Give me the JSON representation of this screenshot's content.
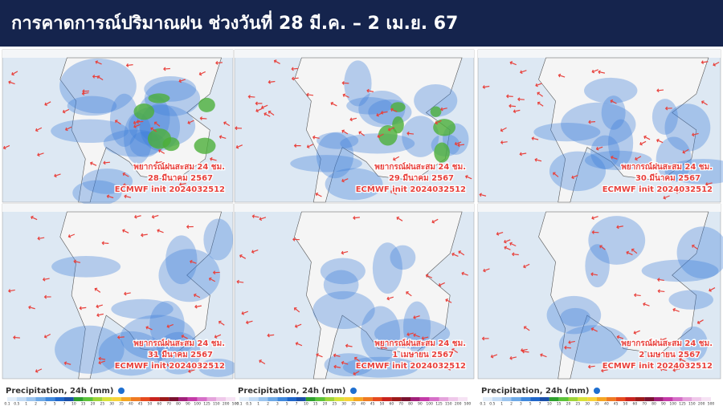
{
  "header": {
    "title": "การคาดการณ์ปริมาณฝน ช่วงวันที่ 28 มี.ค. – 2 เม.ย. 67"
  },
  "panels": [
    {
      "label": "พยากรณ์ฝนสะสม 24 ชม.",
      "date": "28 มีนาคม 2567",
      "model": "ECMWF init 2024032512"
    },
    {
      "label": "พยากรณ์ฝนสะสม 24 ชม.",
      "date": "29 มีนาคม 2567",
      "model": "ECMWF init 2024032512"
    },
    {
      "label": "พยากรณ์ฝนสะสม 24 ชม.",
      "date": "30 มีนาคม 2567",
      "model": "ECMWF init 2024032512"
    },
    {
      "label": "พยากรณ์ฝนสะสม 24 ชม.",
      "date": "31 มีนาคม 2567",
      "model": "ECMWF init 2024032512"
    },
    {
      "label": "พยากรณ์ฝนสะสม 24 ชม.",
      "date": "1 เมษายน 2567",
      "model": "ECMWF init 2024032512"
    },
    {
      "label": "พยากรณ์ฝนสะสม 24 ชม.",
      "date": "2 เมษายน 2567",
      "model": "ECMWF init 2024032512"
    }
  ],
  "legend": {
    "title": "Precipitation, 24h (mm)",
    "scale": [
      0.1,
      0.5,
      1,
      2,
      3,
      5,
      7,
      10,
      15,
      20,
      25,
      30,
      35,
      40,
      45,
      50,
      60,
      70,
      80,
      90,
      100,
      125,
      150,
      200,
      500
    ]
  }
}
